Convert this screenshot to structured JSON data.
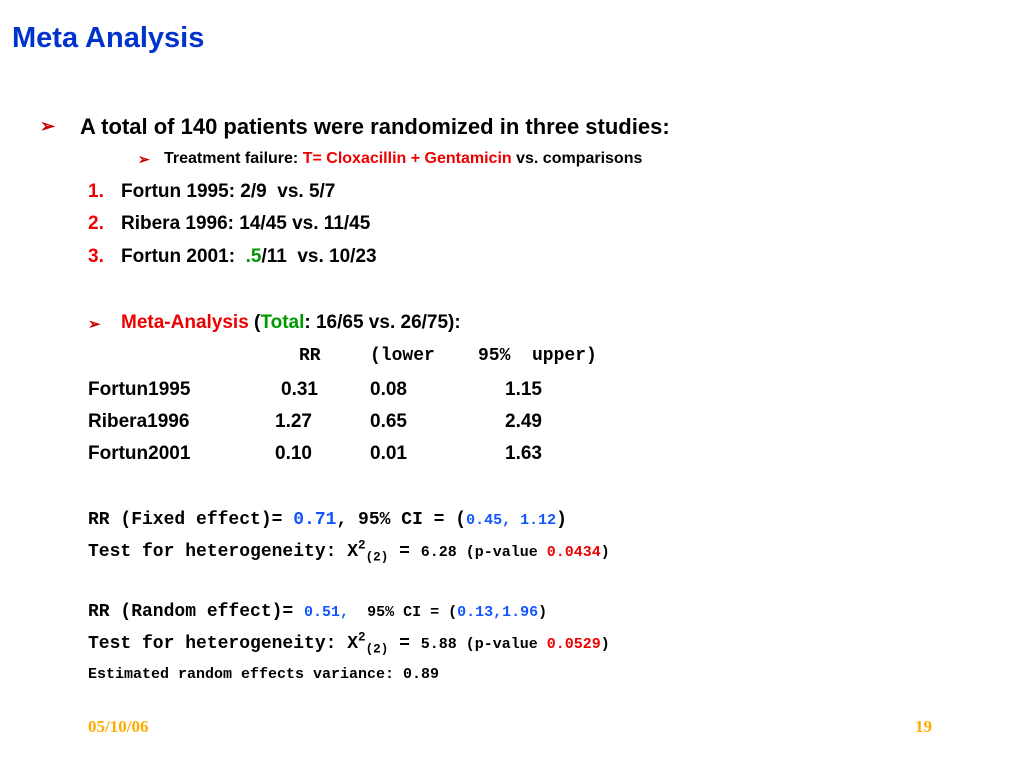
{
  "title": "Meta Analysis",
  "bullet_glyph": "➢",
  "intro": "A total of 140 patients were randomized in three studies:",
  "subbullet": {
    "prefix": "Treatment failure: ",
    "highlight": "T= Cloxacillin + Gentamicin",
    "suffix": " vs. comparisons"
  },
  "studies": [
    {
      "num": "1.",
      "text": "Fortun 1995: 2/9  vs. 5/7"
    },
    {
      "num": "2.",
      "text": "Ribera 1996: 14/45 vs. 11/45"
    },
    {
      "num": "3.",
      "text_a": "Fortun 2001:  ",
      "text_green": ".5",
      "text_b": "/11  vs. 10/23"
    }
  ],
  "meta": {
    "label": "Meta-Analysis",
    "open": " (",
    "total": "Total",
    "rest": ": 16/65 vs. 26/75):"
  },
  "table": {
    "headers": [
      "RR",
      "(lower",
      "95%",
      "upper)"
    ],
    "rows": [
      {
        "name": "Fortun1995",
        "rr": "0.31",
        "lower": "0.08",
        "upper": "1.15"
      },
      {
        "name": "Ribera1996",
        "rr": "1.27",
        "lower": "0.65",
        "upper": "2.49"
      },
      {
        "name": "Fortun2001",
        "rr": "0.10",
        "lower": "0.01",
        "upper": "1.63"
      }
    ]
  },
  "fixed": {
    "label": "RR (Fixed effect)= ",
    "rr": "0.71",
    "ci_label": ", 95% CI = (",
    "ci": "0.45, 1.12",
    "close": ")"
  },
  "het_fixed": {
    "label": "Test for heterogeneity: X",
    "sup": "2",
    "sub": "(2)",
    "eq": " = ",
    "stat": "6.28",
    "p_label": " (p-value ",
    "p": "0.0434",
    "close": ")"
  },
  "random": {
    "label": "RR (Random effect)= ",
    "rr": "0.51,",
    "ci_label": "  95% CI = (",
    "ci": "0.13,1.96",
    "close": ")"
  },
  "het_random": {
    "label": "Test for heterogeneity: X",
    "sup": "2",
    "sub": "(2)",
    "eq": " = ",
    "stat": "5.88",
    "p_label": " (p-value ",
    "p": "0.0529",
    "close": ")"
  },
  "variance": "Estimated random effects variance: 0.89",
  "footer": {
    "date": "05/10/06",
    "page": "19"
  }
}
